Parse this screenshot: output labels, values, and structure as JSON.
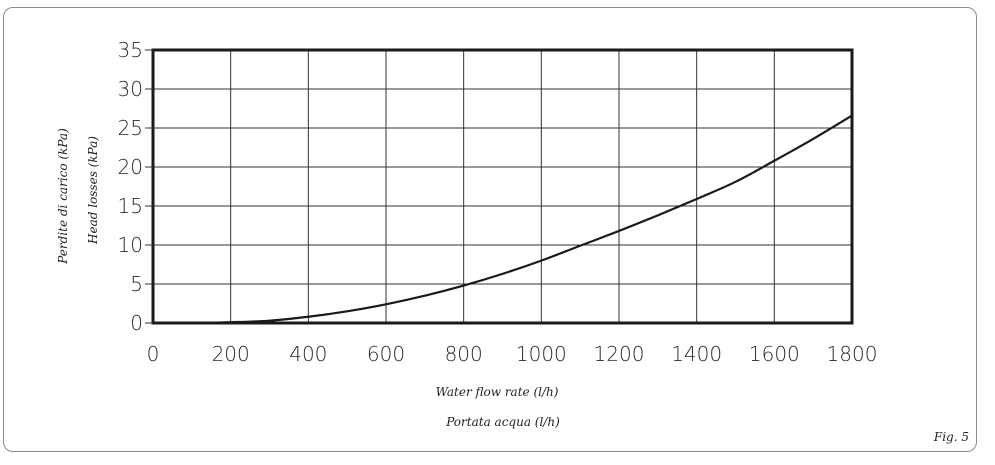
{
  "chart_data": {
    "type": "line",
    "ylabel_lines": [
      "Perdite di carico (kPa)",
      "Head losses (kPa)"
    ],
    "xlabel_lines": [
      "Water flow rate (l/h)",
      "Portata acqua (l/h)"
    ],
    "figure_label": "Fig. 5",
    "xlim": [
      0,
      1800
    ],
    "ylim": [
      0,
      35
    ],
    "x_ticks": [
      0,
      200,
      400,
      600,
      800,
      1000,
      1200,
      1400,
      1600,
      1800
    ],
    "y_ticks": [
      0,
      5,
      10,
      15,
      20,
      25,
      30,
      35
    ],
    "grid": true,
    "line_color": "#1a1a1a",
    "series": [
      {
        "x": [
          0,
          100,
          200,
          300,
          400,
          500,
          600,
          700,
          800,
          900,
          1000,
          1100,
          1200,
          1300,
          1400,
          1500,
          1600,
          1700,
          1800
        ],
        "y": [
          0,
          0,
          0.1,
          0.3,
          0.8,
          1.5,
          2.4,
          3.5,
          4.8,
          6.3,
          8.0,
          9.9,
          11.8,
          13.8,
          15.9,
          18.1,
          20.8,
          23.6,
          26.6
        ]
      }
    ]
  }
}
